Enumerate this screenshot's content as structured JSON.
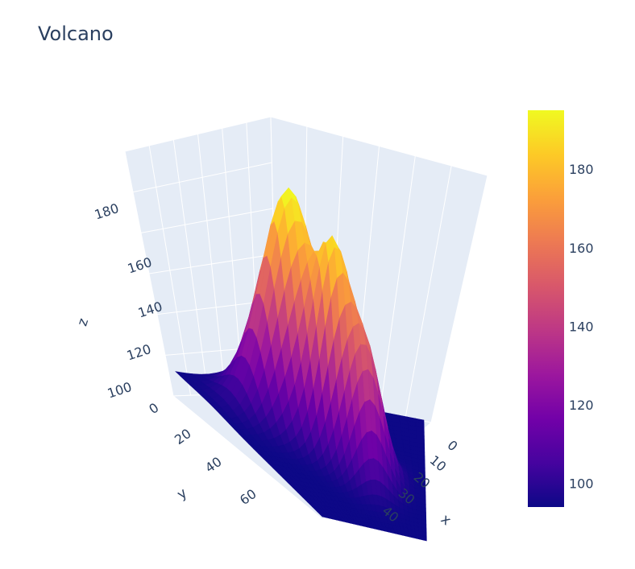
{
  "chart_data": {
    "type": "surface",
    "title": "Volcano",
    "axes": {
      "x": {
        "label": "x",
        "ticks": [
          "0",
          "10",
          "20",
          "30",
          "40"
        ],
        "range": [
          0,
          60
        ]
      },
      "y": {
        "label": "y",
        "ticks": [
          "0",
          "20",
          "40",
          "60"
        ],
        "range": [
          0,
          86
        ]
      },
      "z": {
        "label": "z",
        "ticks": [
          "100",
          "120",
          "140",
          "160",
          "180"
        ],
        "range": [
          94,
          195
        ]
      }
    },
    "colorbar": {
      "ticks": [
        "100",
        "120",
        "140",
        "160",
        "180"
      ],
      "min": 94,
      "max": 195,
      "colorscale": [
        "#0d0887",
        "#46039f",
        "#7201a8",
        "#9c179e",
        "#bd3786",
        "#d8576b",
        "#ed7953",
        "#fb9f3a",
        "#fdca26",
        "#f0f921"
      ]
    },
    "surface_profile": {
      "description_free": true,
      "peak_x": 25,
      "peak_y": 22,
      "peak_z": 195,
      "base_z": 94
    },
    "grid": true
  }
}
